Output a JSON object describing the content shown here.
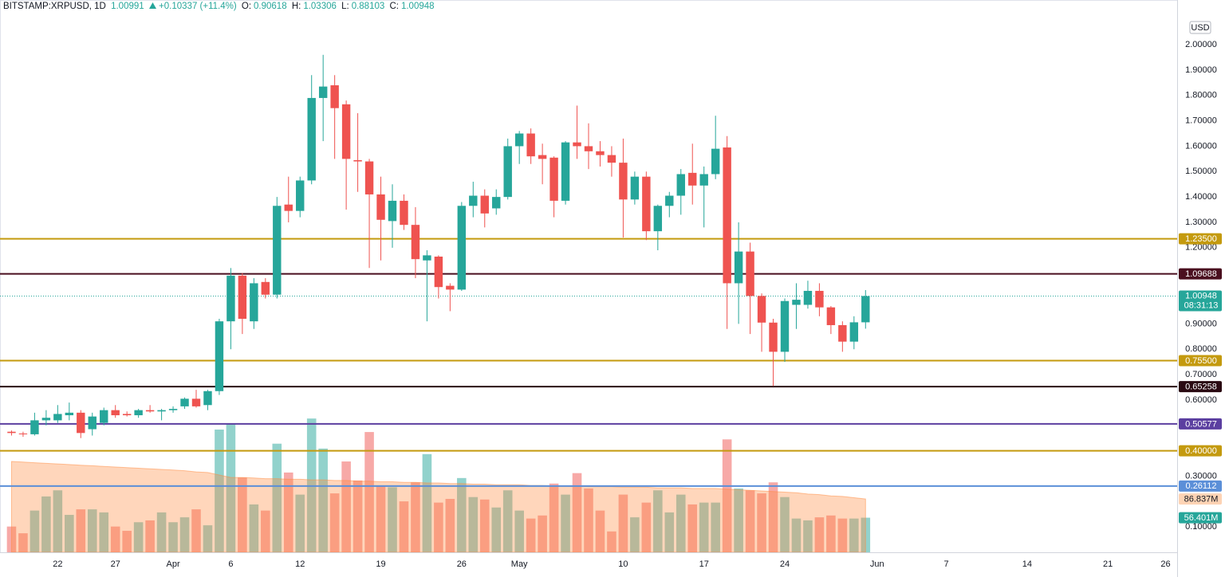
{
  "header": {
    "symbol": "BITSTAMP:XRPUSD, 1D",
    "price": "1.00991",
    "change": "+0.10337 (+11.4%)",
    "ohlc": [
      {
        "key": "O:",
        "value": "0.90618"
      },
      {
        "key": "H:",
        "value": "1.03306"
      },
      {
        "key": "L:",
        "value": "0.88103"
      },
      {
        "key": "C:",
        "value": "1.00948"
      }
    ]
  },
  "chart_data": {
    "type": "candlestick",
    "currency": "USD",
    "up_color": "#26a69a",
    "down_color": "#ef5350",
    "x": [
      "03-18",
      "03-19",
      "03-20",
      "03-21",
      "03-22",
      "03-23",
      "03-24",
      "03-25",
      "03-26",
      "03-27",
      "03-28",
      "03-29",
      "03-30",
      "03-31",
      "04-01",
      "04-02",
      "04-03",
      "04-04",
      "04-05",
      "04-06",
      "04-07",
      "04-08",
      "04-09",
      "04-10",
      "04-11",
      "04-12",
      "04-13",
      "04-14",
      "04-15",
      "04-16",
      "04-17",
      "04-18",
      "04-19",
      "04-20",
      "04-21",
      "04-22",
      "04-23",
      "04-24",
      "04-25",
      "04-26",
      "04-27",
      "04-28",
      "04-29",
      "04-30",
      "05-01",
      "05-02",
      "05-03",
      "05-04",
      "05-05",
      "05-06",
      "05-07",
      "05-08",
      "05-09",
      "05-10",
      "05-11",
      "05-12",
      "05-13",
      "05-14",
      "05-15",
      "05-16",
      "05-17",
      "05-18",
      "05-19",
      "05-20",
      "05-21",
      "05-22",
      "05-23",
      "05-24",
      "05-25",
      "05-26",
      "05-27",
      "05-28",
      "05-29",
      "05-30",
      "05-31"
    ],
    "open": [
      0.475,
      0.468,
      0.465,
      0.52,
      0.52,
      0.54,
      0.55,
      0.485,
      0.51,
      0.56,
      0.545,
      0.54,
      0.56,
      0.555,
      0.56,
      0.575,
      0.605,
      0.58,
      0.635,
      0.91,
      1.09,
      0.91,
      1.065,
      1.015,
      1.37,
      1.345,
      1.465,
      1.79,
      1.84,
      1.765,
      1.545,
      1.54,
      1.41,
      1.305,
      1.385,
      1.29,
      1.15,
      1.165,
      1.05,
      1.035,
      1.365,
      1.405,
      1.355,
      1.4,
      1.6,
      1.65,
      1.565,
      1.555,
      1.385,
      1.615,
      1.6,
      1.58,
      1.565,
      1.535,
      1.39,
      1.48,
      1.265,
      1.365,
      1.405,
      1.495,
      1.445,
      1.49,
      1.595,
      1.06,
      1.185,
      1.01,
      0.905,
      0.79,
      0.975,
      0.975,
      1.03,
      0.965,
      0.895,
      0.83,
      0.90618
    ],
    "high": [
      0.48,
      0.475,
      0.55,
      0.56,
      0.58,
      0.59,
      0.56,
      0.55,
      0.57,
      0.58,
      0.555,
      0.565,
      0.58,
      0.565,
      0.575,
      0.61,
      0.64,
      0.64,
      0.92,
      1.12,
      1.1,
      1.08,
      1.08,
      1.4,
      1.48,
      1.48,
      1.88,
      1.96,
      1.88,
      1.78,
      1.73,
      1.55,
      1.48,
      1.45,
      1.41,
      1.36,
      1.19,
      1.17,
      1.06,
      1.38,
      1.46,
      1.43,
      1.43,
      1.63,
      1.66,
      1.67,
      1.61,
      1.56,
      1.62,
      1.76,
      1.69,
      1.62,
      1.6,
      1.63,
      1.5,
      1.5,
      1.37,
      1.42,
      1.51,
      1.61,
      1.52,
      1.72,
      1.64,
      1.3,
      1.22,
      1.02,
      0.92,
      1.0,
      1.06,
      1.07,
      1.06,
      0.97,
      0.91,
      0.93,
      1.03306
    ],
    "low": [
      0.46,
      0.455,
      0.46,
      0.5,
      0.51,
      0.52,
      0.45,
      0.46,
      0.5,
      0.53,
      0.535,
      0.53,
      0.55,
      0.52,
      0.55,
      0.565,
      0.57,
      0.56,
      0.62,
      0.8,
      0.86,
      0.88,
      1.0,
      1.0,
      1.3,
      1.32,
      1.45,
      1.62,
      1.55,
      1.35,
      1.42,
      1.12,
      1.15,
      1.2,
      1.27,
      1.08,
      0.91,
      1.0,
      0.95,
      1.03,
      1.32,
      1.28,
      1.33,
      1.39,
      1.53,
      1.53,
      1.45,
      1.32,
      1.37,
      1.55,
      1.51,
      1.52,
      1.48,
      1.24,
      1.37,
      1.23,
      1.19,
      1.32,
      1.33,
      1.37,
      1.28,
      1.47,
      0.88,
      0.9,
      0.86,
      0.79,
      0.655,
      0.75,
      0.88,
      0.96,
      0.93,
      0.86,
      0.79,
      0.8,
      0.88103
    ],
    "close": [
      0.47,
      0.465,
      0.52,
      0.53,
      0.545,
      0.55,
      0.47,
      0.535,
      0.56,
      0.54,
      0.54,
      0.56,
      0.555,
      0.56,
      0.565,
      0.605,
      0.575,
      0.635,
      0.91,
      1.09,
      0.92,
      1.06,
      1.015,
      1.365,
      1.345,
      1.465,
      1.79,
      1.835,
      1.75,
      1.55,
      1.54,
      1.41,
      1.31,
      1.385,
      1.29,
      1.155,
      1.17,
      1.045,
      1.035,
      1.365,
      1.405,
      1.335,
      1.4,
      1.6,
      1.65,
      1.56,
      1.55,
      1.385,
      1.615,
      1.6,
      1.58,
      1.565,
      1.535,
      1.39,
      1.48,
      1.265,
      1.365,
      1.405,
      1.49,
      1.445,
      1.49,
      1.59,
      1.06,
      1.185,
      1.01,
      0.905,
      0.79,
      0.99,
      0.995,
      1.03,
      0.965,
      0.895,
      0.83,
      0.90618,
      1.00948
    ],
    "volume": [
      42,
      31,
      68,
      91,
      101,
      61,
      70,
      70,
      65,
      42,
      35,
      49,
      52,
      65,
      49,
      57,
      70,
      44,
      200,
      210,
      122,
      78,
      68,
      177,
      130,
      94,
      218,
      169,
      96,
      148,
      117,
      196,
      109,
      106,
      83,
      114,
      160,
      81,
      87,
      121,
      90,
      86,
      73,
      101,
      68,
      55,
      60,
      112,
      94,
      129,
      104,
      68,
      34,
      94,
      57,
      81,
      101,
      65,
      94,
      78,
      81,
      81,
      184,
      104,
      101,
      96,
      114,
      90,
      55,
      52,
      57,
      60,
      55,
      55,
      56.401
    ],
    "volume_ma": [
      148,
      147,
      146,
      145,
      144,
      143,
      142,
      141,
      140,
      139,
      138,
      137,
      136,
      135,
      134,
      133,
      131,
      130,
      126,
      122,
      122,
      121,
      120,
      120,
      119,
      119,
      118,
      118,
      117,
      117,
      116,
      116,
      115,
      115,
      114,
      114,
      113,
      113,
      112,
      112,
      111,
      111,
      110,
      110,
      110,
      109,
      109,
      108,
      108,
      108,
      107,
      107,
      107,
      106,
      106,
      106,
      105,
      105,
      105,
      104,
      104,
      104,
      103,
      102,
      101,
      100,
      99,
      98,
      97,
      95,
      94,
      92,
      91,
      89,
      86.837
    ],
    "volume_label": "56.401M",
    "volume_ma_label": "86.837M",
    "volume_ma_color": "#ff8a3d",
    "volume_lim": [
      0,
      900
    ],
    "xlim": [
      "03-17",
      "06-27"
    ],
    "xticks": [
      {
        "value": "03-22",
        "label": "22"
      },
      {
        "value": "03-27",
        "label": "27"
      },
      {
        "value": "04-01",
        "label": "Apr"
      },
      {
        "value": "04-06",
        "label": "6"
      },
      {
        "value": "04-12",
        "label": "12"
      },
      {
        "value": "04-19",
        "label": "19"
      },
      {
        "value": "04-26",
        "label": "26"
      },
      {
        "value": "05-01",
        "label": "May"
      },
      {
        "value": "05-10",
        "label": "10"
      },
      {
        "value": "05-17",
        "label": "17"
      },
      {
        "value": "05-24",
        "label": "24"
      },
      {
        "value": "06-01",
        "label": "Jun"
      },
      {
        "value": "06-07",
        "label": "7"
      },
      {
        "value": "06-14",
        "label": "14"
      },
      {
        "value": "06-21",
        "label": "21"
      },
      {
        "value": "06-26",
        "label": "26"
      }
    ],
    "ylim": [
      0,
      2.176
    ],
    "yticks": [
      {
        "value": 2.0,
        "label": "2.00000"
      },
      {
        "value": 1.9,
        "label": "1.90000"
      },
      {
        "value": 1.8,
        "label": "1.80000"
      },
      {
        "value": 1.7,
        "label": "1.70000"
      },
      {
        "value": 1.6,
        "label": "1.60000"
      },
      {
        "value": 1.5,
        "label": "1.50000"
      },
      {
        "value": 1.4,
        "label": "1.40000"
      },
      {
        "value": 1.3,
        "label": "1.30000"
      },
      {
        "value": 1.2,
        "label": "1.20000"
      },
      {
        "value": 0.9,
        "label": "0.90000"
      },
      {
        "value": 0.8,
        "label": "0.80000"
      },
      {
        "value": 0.7,
        "label": "0.70000"
      },
      {
        "value": 0.6,
        "label": "0.60000"
      },
      {
        "value": 0.3,
        "label": "0.30000"
      },
      {
        "value": 0.1,
        "label": "0.10000"
      }
    ],
    "grid": false,
    "levels": [
      {
        "value": 1.235,
        "label": "1.23500",
        "color": "#c49a0e"
      },
      {
        "value": 1.09688,
        "label": "1.09688",
        "color": "#4a0f1f"
      },
      {
        "value": 0.755,
        "label": "0.75500",
        "color": "#c49a0e"
      },
      {
        "value": 0.65258,
        "label": "0.65258",
        "color": "#2a0a12"
      },
      {
        "value": 0.50577,
        "label": "0.50577",
        "color": "#5b3fa0"
      },
      {
        "value": 0.4,
        "label": "0.40000",
        "color": "#c49a0e"
      },
      {
        "value": 0.26112,
        "label": "0.26112",
        "color": "#5b8fd8"
      }
    ],
    "last_price": {
      "value": 1.00948,
      "label": "1.00948",
      "countdown": "08:31:13",
      "color": "#26a69a"
    }
  }
}
